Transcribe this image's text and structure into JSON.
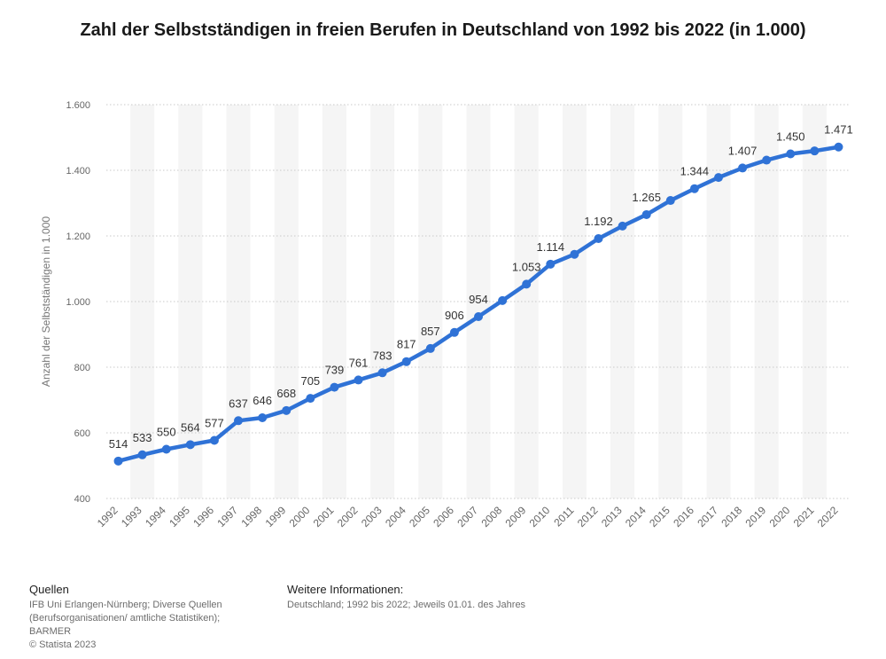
{
  "chart_data": {
    "type": "line",
    "title": "Zahl der Selbstständigen in freien Berufen in Deutschland von 1992 bis 2022 (in 1.000)",
    "ylabel": "Anzahl der Selbstständigen in 1.000",
    "xlabel": "",
    "ylim": [
      400,
      1600
    ],
    "yticks": [
      "400",
      "600",
      "800",
      "1.000",
      "1.200",
      "1.400",
      "1.600"
    ],
    "categories": [
      "1992",
      "1993",
      "1994",
      "1995",
      "1996",
      "1997",
      "1998",
      "1999",
      "2000",
      "2001",
      "2002",
      "2003",
      "2004",
      "2005",
      "2006",
      "2007",
      "2008",
      "2009",
      "2010",
      "2011",
      "2012",
      "2013",
      "2014",
      "2015",
      "2016",
      "2017",
      "2018",
      "2019",
      "2020",
      "2021",
      "2022"
    ],
    "values": [
      514,
      533,
      550,
      564,
      577,
      637,
      646,
      668,
      705,
      739,
      761,
      783,
      817,
      857,
      906,
      954,
      1003,
      1053,
      1114,
      1144,
      1192,
      1230,
      1265,
      1308,
      1344,
      1378,
      1407,
      1431,
      1450,
      1459,
      1471
    ],
    "data_labels": [
      "514",
      "533",
      "550",
      "564",
      "577",
      "637",
      "646",
      "668",
      "705",
      "739",
      "761",
      "783",
      "817",
      "857",
      "906",
      "954",
      "",
      "1.053",
      "1.114",
      "",
      "1.192",
      "",
      "1.265",
      "",
      "1.344",
      "",
      "1.407",
      "",
      "1.450",
      "",
      "1.471"
    ],
    "grid": true,
    "line_color": "#2f72d6",
    "band_color": "#f5f5f5"
  },
  "footer": {
    "sources_heading": "Quellen",
    "sources_lines": [
      "IFB Uni Erlangen-Nürnberg; Diverse Quellen",
      "(Berufsorganisationen/ amtliche Statistiken);",
      "BARMER",
      "© Statista 2023"
    ],
    "info_heading": "Weitere Informationen:",
    "info_lines": [
      "Deutschland; 1992 bis 2022; Jeweils 01.01. des Jahres"
    ]
  }
}
